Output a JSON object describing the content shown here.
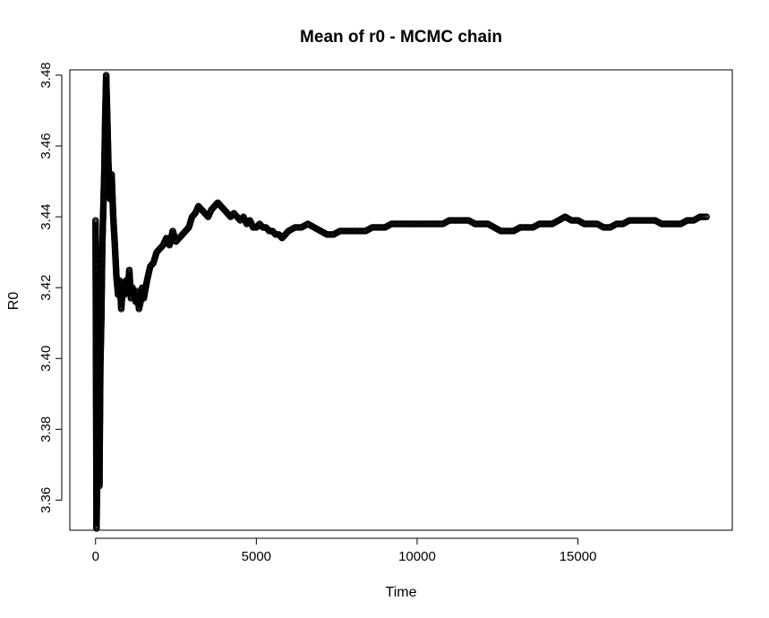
{
  "chart_data": {
    "type": "scatter",
    "title": "Mean of r0 - MCMC chain",
    "xlabel": "Time",
    "ylabel": "R0",
    "xlim": [
      -800,
      19800
    ],
    "ylim": [
      3.3515,
      3.4815
    ],
    "x_ticks": [
      0,
      5000,
      10000,
      15000
    ],
    "x_tick_labels": [
      "0",
      "5000",
      "10000",
      "15000"
    ],
    "y_ticks": [
      3.36,
      3.38,
      3.4,
      3.42,
      3.44,
      3.46,
      3.48
    ],
    "y_tick_labels": [
      "3.36",
      "3.38",
      "3.40",
      "3.42",
      "3.44",
      "3.46",
      "3.48"
    ],
    "grid": false,
    "marker": "open-circle",
    "x_max": 19000,
    "series": [
      {
        "values": [
          [
            0,
            3.439
          ],
          [
            30,
            3.352
          ],
          [
            60,
            3.371
          ],
          [
            90,
            3.423
          ],
          [
            120,
            3.364
          ],
          [
            150,
            3.398
          ],
          [
            180,
            3.411
          ],
          [
            210,
            3.432
          ],
          [
            240,
            3.442
          ],
          [
            270,
            3.452
          ],
          [
            300,
            3.468
          ],
          [
            330,
            3.48
          ],
          [
            360,
            3.47
          ],
          [
            400,
            3.455
          ],
          [
            450,
            3.445
          ],
          [
            500,
            3.452
          ],
          [
            550,
            3.44
          ],
          [
            600,
            3.432
          ],
          [
            650,
            3.423
          ],
          [
            700,
            3.418
          ],
          [
            750,
            3.422
          ],
          [
            800,
            3.414
          ],
          [
            850,
            3.421
          ],
          [
            900,
            3.418
          ],
          [
            950,
            3.422
          ],
          [
            1000,
            3.419
          ],
          [
            1050,
            3.425
          ],
          [
            1100,
            3.417
          ],
          [
            1150,
            3.42
          ],
          [
            1200,
            3.418
          ],
          [
            1250,
            3.416
          ],
          [
            1300,
            3.419
          ],
          [
            1350,
            3.414
          ],
          [
            1400,
            3.416
          ],
          [
            1450,
            3.42
          ],
          [
            1500,
            3.417
          ],
          [
            1600,
            3.422
          ],
          [
            1700,
            3.426
          ],
          [
            1800,
            3.427
          ],
          [
            1900,
            3.43
          ],
          [
            2000,
            3.431
          ],
          [
            2100,
            3.432
          ],
          [
            2200,
            3.434
          ],
          [
            2300,
            3.432
          ],
          [
            2400,
            3.436
          ],
          [
            2500,
            3.433
          ],
          [
            2600,
            3.434
          ],
          [
            2700,
            3.435
          ],
          [
            2800,
            3.436
          ],
          [
            2900,
            3.437
          ],
          [
            3000,
            3.44
          ],
          [
            3100,
            3.441
          ],
          [
            3200,
            3.443
          ],
          [
            3300,
            3.442
          ],
          [
            3400,
            3.441
          ],
          [
            3500,
            3.44
          ],
          [
            3600,
            3.442
          ],
          [
            3700,
            3.443
          ],
          [
            3800,
            3.444
          ],
          [
            3900,
            3.443
          ],
          [
            4000,
            3.442
          ],
          [
            4100,
            3.441
          ],
          [
            4200,
            3.44
          ],
          [
            4300,
            3.441
          ],
          [
            4400,
            3.44
          ],
          [
            4500,
            3.439
          ],
          [
            4600,
            3.44
          ],
          [
            4700,
            3.438
          ],
          [
            4800,
            3.439
          ],
          [
            4900,
            3.437
          ],
          [
            5000,
            3.437
          ],
          [
            5100,
            3.438
          ],
          [
            5200,
            3.437
          ],
          [
            5300,
            3.437
          ],
          [
            5400,
            3.436
          ],
          [
            5500,
            3.436
          ],
          [
            5600,
            3.435
          ],
          [
            5700,
            3.435
          ],
          [
            5800,
            3.434
          ],
          [
            5900,
            3.435
          ],
          [
            6000,
            3.436
          ],
          [
            6200,
            3.437
          ],
          [
            6400,
            3.437
          ],
          [
            6600,
            3.438
          ],
          [
            6800,
            3.437
          ],
          [
            7000,
            3.436
          ],
          [
            7200,
            3.435
          ],
          [
            7400,
            3.435
          ],
          [
            7600,
            3.436
          ],
          [
            7800,
            3.436
          ],
          [
            8000,
            3.436
          ],
          [
            8200,
            3.436
          ],
          [
            8400,
            3.436
          ],
          [
            8600,
            3.437
          ],
          [
            8800,
            3.437
          ],
          [
            9000,
            3.437
          ],
          [
            9200,
            3.438
          ],
          [
            9400,
            3.438
          ],
          [
            9600,
            3.438
          ],
          [
            9800,
            3.438
          ],
          [
            10000,
            3.438
          ],
          [
            10200,
            3.438
          ],
          [
            10400,
            3.438
          ],
          [
            10600,
            3.438
          ],
          [
            10800,
            3.438
          ],
          [
            11000,
            3.439
          ],
          [
            11200,
            3.439
          ],
          [
            11400,
            3.439
          ],
          [
            11600,
            3.439
          ],
          [
            11800,
            3.438
          ],
          [
            12000,
            3.438
          ],
          [
            12200,
            3.438
          ],
          [
            12400,
            3.437
          ],
          [
            12600,
            3.436
          ],
          [
            12800,
            3.436
          ],
          [
            13000,
            3.436
          ],
          [
            13200,
            3.437
          ],
          [
            13400,
            3.437
          ],
          [
            13600,
            3.437
          ],
          [
            13800,
            3.438
          ],
          [
            14000,
            3.438
          ],
          [
            14200,
            3.438
          ],
          [
            14400,
            3.439
          ],
          [
            14600,
            3.44
          ],
          [
            14800,
            3.439
          ],
          [
            15000,
            3.439
          ],
          [
            15200,
            3.438
          ],
          [
            15400,
            3.438
          ],
          [
            15600,
            3.438
          ],
          [
            15800,
            3.437
          ],
          [
            16000,
            3.437
          ],
          [
            16200,
            3.438
          ],
          [
            16400,
            3.438
          ],
          [
            16600,
            3.439
          ],
          [
            16800,
            3.439
          ],
          [
            17000,
            3.439
          ],
          [
            17200,
            3.439
          ],
          [
            17400,
            3.439
          ],
          [
            17600,
            3.438
          ],
          [
            17800,
            3.438
          ],
          [
            18000,
            3.438
          ],
          [
            18200,
            3.438
          ],
          [
            18400,
            3.439
          ],
          [
            18600,
            3.439
          ],
          [
            18800,
            3.44
          ],
          [
            19000,
            3.44
          ]
        ]
      }
    ]
  }
}
